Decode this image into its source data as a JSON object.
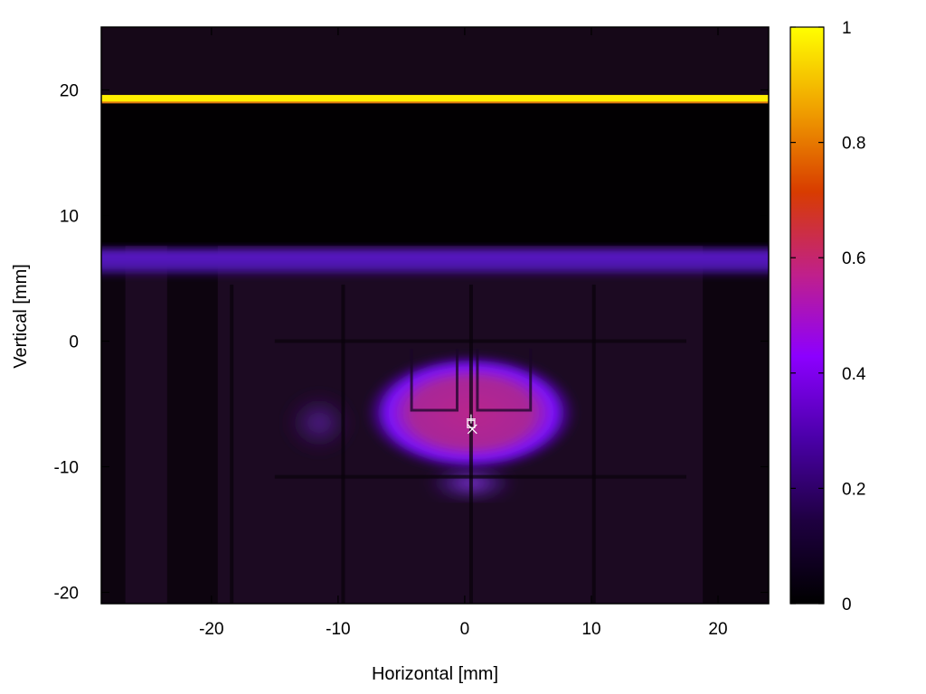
{
  "chart_data": {
    "type": "heatmap",
    "title": "",
    "xlabel": "Horizontal [mm]",
    "ylabel": "Vertical [mm]",
    "xlim": [
      -28.7,
      24
    ],
    "ylim": [
      -20.9,
      25
    ],
    "x_ticks": [
      -20,
      -10,
      0,
      10,
      20
    ],
    "y_ticks": [
      -20,
      -10,
      0,
      10,
      20
    ],
    "colorbar": {
      "range": [
        0,
        1
      ],
      "ticks": [
        0,
        0.2,
        0.4,
        0.6,
        0.8,
        1
      ],
      "colormap": [
        "#000000",
        "#1e0040",
        "#4a00a8",
        "#8c00ff",
        "#c0208a",
        "#d83c00",
        "#f0a000",
        "#ffff00"
      ]
    },
    "features": [
      {
        "name": "bright band",
        "shape": "band",
        "x": [
          -28.7,
          24
        ],
        "y": [
          19.0,
          19.6
        ],
        "value": 1.0
      },
      {
        "name": "diffuse band",
        "shape": "band",
        "x": [
          -28.7,
          24
        ],
        "y": [
          5.0,
          7.6
        ],
        "value": 0.22
      },
      {
        "name": "central spot",
        "shape": "ellipse",
        "center": [
          0.5,
          -5.7
        ],
        "radius": [
          8.5,
          4.8
        ],
        "value": 0.45
      },
      {
        "name": "side spot",
        "shape": "ellipse",
        "center": [
          -11.5,
          -6.5
        ],
        "radius": [
          2.8,
          2.5
        ],
        "value": 0.1
      }
    ],
    "grid_lines": {
      "vertical_x": [
        -18.4,
        -9.6,
        0.5,
        10.2
      ],
      "horizontal_y": [
        0,
        -10.8
      ]
    },
    "markers": [
      {
        "symbol": "plus",
        "x": 0.5,
        "y": -6.2
      },
      {
        "symbol": "square",
        "x": 0.5,
        "y": -6.6
      },
      {
        "symbol": "cross",
        "x": 0.6,
        "y": -7.0
      }
    ]
  }
}
